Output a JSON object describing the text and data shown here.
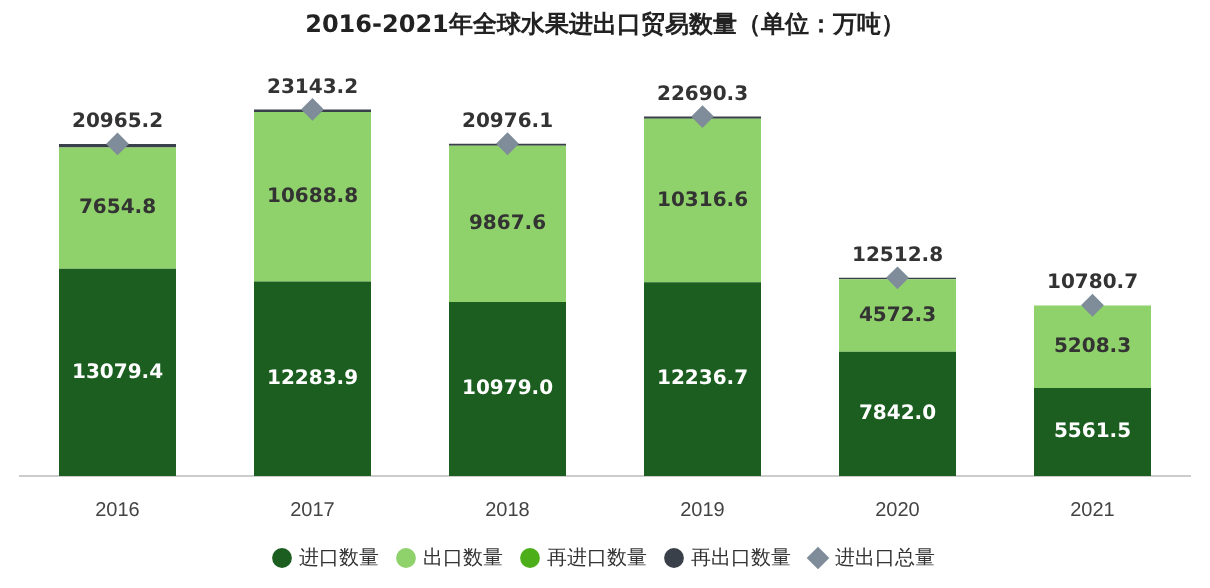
{
  "chart_data": {
    "type": "bar",
    "stacked": true,
    "title": "2016-2021年全球水果进出口贸易数量（单位：万吨）",
    "categories": [
      "2016",
      "2017",
      "2018",
      "2019",
      "2020",
      "2021"
    ],
    "series": [
      {
        "name": "进口数量",
        "color": "#1b5e20",
        "values": [
          13079.4,
          12283.9,
          10979.0,
          12236.7,
          7842.0,
          5561.5
        ],
        "value_labels": [
          "13079.4",
          "12283.9",
          "10979.0",
          "12236.7",
          "7842.0",
          "5561.5"
        ]
      },
      {
        "name": "出口数量",
        "color": "#8fd16a",
        "values": [
          7654.8,
          10688.8,
          9867.6,
          10316.6,
          4572.3,
          5208.3
        ],
        "value_labels": [
          "7654.8",
          "10688.8",
          "9867.6",
          "10316.6",
          "4572.3",
          "5208.3"
        ]
      },
      {
        "name": "再进口数量",
        "color": "#4caf1a",
        "values": [
          0,
          0,
          0,
          0,
          0,
          0
        ]
      },
      {
        "name": "再出口数量",
        "color": "#3a4049",
        "values": [
          231.0,
          170.5,
          128.5,
          137.0,
          98.5,
          null
        ]
      },
      {
        "name": "进出口总量",
        "type": "scatter",
        "marker": "diamond",
        "color": "#7f8c99",
        "values": [
          20965.2,
          23143.2,
          20976.1,
          22690.3,
          12512.8,
          10780.7
        ],
        "value_labels": [
          "20965.2",
          "23143.2",
          "20976.1",
          "22690.3",
          "12512.8",
          "10780.7"
        ]
      }
    ],
    "legend": "bottom",
    "tick_labels": "x",
    "grid": false
  }
}
